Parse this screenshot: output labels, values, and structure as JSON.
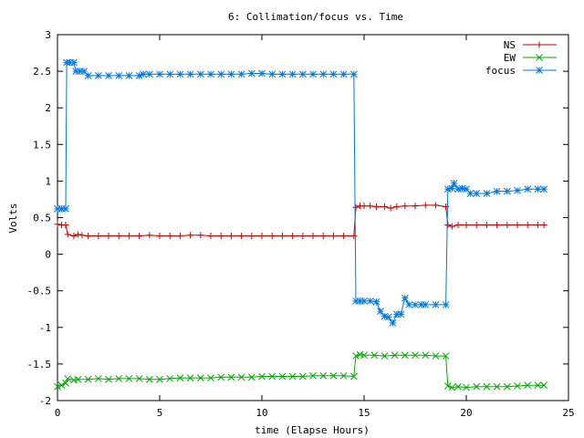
{
  "chart_data": {
    "type": "line",
    "title": "6: Collimation/focus vs. Time",
    "xlabel": "time (Elapse Hours)",
    "ylabel": "Volts",
    "xlim": [
      0,
      25
    ],
    "ylim": [
      -2,
      3
    ],
    "x_ticks": [
      "0",
      "5",
      "10",
      "15",
      "20",
      "25"
    ],
    "y_ticks": [
      "-2",
      "-1.5",
      "-1",
      "-0.5",
      "0",
      "0.5",
      "1",
      "1.5",
      "2",
      "2.5",
      "3"
    ],
    "grid": false,
    "legend_position": "top-right",
    "series": [
      {
        "name": "NS",
        "color": "#cc0000",
        "marker": "plus",
        "points": [
          [
            0.0,
            0.41
          ],
          [
            0.2,
            0.4
          ],
          [
            0.4,
            0.4
          ],
          [
            0.5,
            0.27
          ],
          [
            0.8,
            0.25
          ],
          [
            1.0,
            0.27
          ],
          [
            1.2,
            0.26
          ],
          [
            1.5,
            0.25
          ],
          [
            2.0,
            0.25
          ],
          [
            2.5,
            0.25
          ],
          [
            3.0,
            0.25
          ],
          [
            3.5,
            0.25
          ],
          [
            4.0,
            0.25
          ],
          [
            4.5,
            0.26
          ],
          [
            5.0,
            0.25
          ],
          [
            5.5,
            0.25
          ],
          [
            6.0,
            0.25
          ],
          [
            6.5,
            0.26
          ],
          [
            7.0,
            0.26
          ],
          [
            7.5,
            0.25
          ],
          [
            8.0,
            0.25
          ],
          [
            8.5,
            0.25
          ],
          [
            9.0,
            0.25
          ],
          [
            9.5,
            0.25
          ],
          [
            10.0,
            0.25
          ],
          [
            10.5,
            0.25
          ],
          [
            11.0,
            0.25
          ],
          [
            11.5,
            0.25
          ],
          [
            12.0,
            0.25
          ],
          [
            12.5,
            0.25
          ],
          [
            13.0,
            0.25
          ],
          [
            13.5,
            0.25
          ],
          [
            14.0,
            0.25
          ],
          [
            14.5,
            0.25
          ],
          [
            14.6,
            0.64
          ],
          [
            14.8,
            0.66
          ],
          [
            15.0,
            0.66
          ],
          [
            15.3,
            0.66
          ],
          [
            15.6,
            0.65
          ],
          [
            16.0,
            0.65
          ],
          [
            16.3,
            0.63
          ],
          [
            16.6,
            0.65
          ],
          [
            17.0,
            0.66
          ],
          [
            17.5,
            0.66
          ],
          [
            18.0,
            0.67
          ],
          [
            18.5,
            0.67
          ],
          [
            19.0,
            0.65
          ],
          [
            19.1,
            0.4
          ],
          [
            19.3,
            0.38
          ],
          [
            19.6,
            0.4
          ],
          [
            20.0,
            0.4
          ],
          [
            20.5,
            0.4
          ],
          [
            21.0,
            0.4
          ],
          [
            21.5,
            0.4
          ],
          [
            22.0,
            0.4
          ],
          [
            22.5,
            0.4
          ],
          [
            23.0,
            0.4
          ],
          [
            23.5,
            0.4
          ],
          [
            23.8,
            0.4
          ]
        ]
      },
      {
        "name": "EW",
        "color": "#00aa00",
        "marker": "cross",
        "points": [
          [
            0.0,
            -1.81
          ],
          [
            0.2,
            -1.79
          ],
          [
            0.4,
            -1.76
          ],
          [
            0.5,
            -1.7
          ],
          [
            0.8,
            -1.72
          ],
          [
            1.0,
            -1.71
          ],
          [
            1.5,
            -1.71
          ],
          [
            2.0,
            -1.7
          ],
          [
            2.5,
            -1.71
          ],
          [
            3.0,
            -1.7
          ],
          [
            3.5,
            -1.7
          ],
          [
            4.0,
            -1.7
          ],
          [
            4.5,
            -1.71
          ],
          [
            5.0,
            -1.71
          ],
          [
            5.5,
            -1.7
          ],
          [
            6.0,
            -1.69
          ],
          [
            6.5,
            -1.69
          ],
          [
            7.0,
            -1.69
          ],
          [
            7.5,
            -1.69
          ],
          [
            8.0,
            -1.68
          ],
          [
            8.5,
            -1.68
          ],
          [
            9.0,
            -1.68
          ],
          [
            9.5,
            -1.68
          ],
          [
            10.0,
            -1.67
          ],
          [
            10.5,
            -1.67
          ],
          [
            11.0,
            -1.67
          ],
          [
            11.5,
            -1.67
          ],
          [
            12.0,
            -1.67
          ],
          [
            12.5,
            -1.66
          ],
          [
            13.0,
            -1.66
          ],
          [
            13.5,
            -1.66
          ],
          [
            14.0,
            -1.66
          ],
          [
            14.5,
            -1.67
          ],
          [
            14.6,
            -1.39
          ],
          [
            14.8,
            -1.37
          ],
          [
            15.0,
            -1.38
          ],
          [
            15.5,
            -1.38
          ],
          [
            16.0,
            -1.39
          ],
          [
            16.5,
            -1.38
          ],
          [
            17.0,
            -1.38
          ],
          [
            17.5,
            -1.38
          ],
          [
            18.0,
            -1.38
          ],
          [
            18.5,
            -1.39
          ],
          [
            19.0,
            -1.39
          ],
          [
            19.1,
            -1.8
          ],
          [
            19.3,
            -1.82
          ],
          [
            19.6,
            -1.81
          ],
          [
            20.0,
            -1.82
          ],
          [
            20.5,
            -1.81
          ],
          [
            21.0,
            -1.81
          ],
          [
            21.5,
            -1.81
          ],
          [
            22.0,
            -1.81
          ],
          [
            22.5,
            -1.8
          ],
          [
            23.0,
            -1.79
          ],
          [
            23.5,
            -1.79
          ],
          [
            23.8,
            -1.79
          ]
        ]
      },
      {
        "name": "focus",
        "color": "#0077dd",
        "marker": "star",
        "points": [
          [
            0.0,
            0.62
          ],
          [
            0.2,
            0.62
          ],
          [
            0.4,
            0.62
          ],
          [
            0.45,
            2.62
          ],
          [
            0.6,
            2.62
          ],
          [
            0.8,
            2.62
          ],
          [
            0.9,
            2.5
          ],
          [
            1.1,
            2.5
          ],
          [
            1.3,
            2.5
          ],
          [
            1.5,
            2.44
          ],
          [
            2.0,
            2.44
          ],
          [
            2.5,
            2.44
          ],
          [
            3.0,
            2.44
          ],
          [
            3.5,
            2.44
          ],
          [
            4.0,
            2.44
          ],
          [
            4.2,
            2.46
          ],
          [
            4.5,
            2.46
          ],
          [
            5.0,
            2.46
          ],
          [
            5.5,
            2.46
          ],
          [
            6.0,
            2.46
          ],
          [
            6.5,
            2.46
          ],
          [
            7.0,
            2.46
          ],
          [
            7.5,
            2.46
          ],
          [
            8.0,
            2.46
          ],
          [
            8.5,
            2.46
          ],
          [
            9.0,
            2.46
          ],
          [
            9.5,
            2.47
          ],
          [
            10.0,
            2.47
          ],
          [
            10.5,
            2.46
          ],
          [
            11.0,
            2.46
          ],
          [
            11.5,
            2.46
          ],
          [
            12.0,
            2.46
          ],
          [
            12.5,
            2.46
          ],
          [
            13.0,
            2.46
          ],
          [
            13.5,
            2.46
          ],
          [
            14.0,
            2.46
          ],
          [
            14.5,
            2.46
          ],
          [
            14.6,
            -0.64
          ],
          [
            14.8,
            -0.64
          ],
          [
            15.0,
            -0.64
          ],
          [
            15.3,
            -0.64
          ],
          [
            15.6,
            -0.65
          ],
          [
            15.8,
            -0.78
          ],
          [
            16.0,
            -0.85
          ],
          [
            16.2,
            -0.86
          ],
          [
            16.4,
            -0.94
          ],
          [
            16.6,
            -0.82
          ],
          [
            16.8,
            -0.82
          ],
          [
            17.0,
            -0.6
          ],
          [
            17.2,
            -0.69
          ],
          [
            17.5,
            -0.69
          ],
          [
            17.8,
            -0.69
          ],
          [
            18.0,
            -0.69
          ],
          [
            18.5,
            -0.69
          ],
          [
            19.0,
            -0.69
          ],
          [
            19.1,
            0.89
          ],
          [
            19.3,
            0.9
          ],
          [
            19.4,
            0.97
          ],
          [
            19.6,
            0.89
          ],
          [
            19.8,
            0.9
          ],
          [
            20.0,
            0.89
          ],
          [
            20.2,
            0.83
          ],
          [
            20.5,
            0.83
          ],
          [
            21.0,
            0.83
          ],
          [
            21.5,
            0.86
          ],
          [
            22.0,
            0.86
          ],
          [
            22.5,
            0.87
          ],
          [
            23.0,
            0.89
          ],
          [
            23.5,
            0.89
          ],
          [
            23.8,
            0.89
          ]
        ]
      }
    ]
  }
}
